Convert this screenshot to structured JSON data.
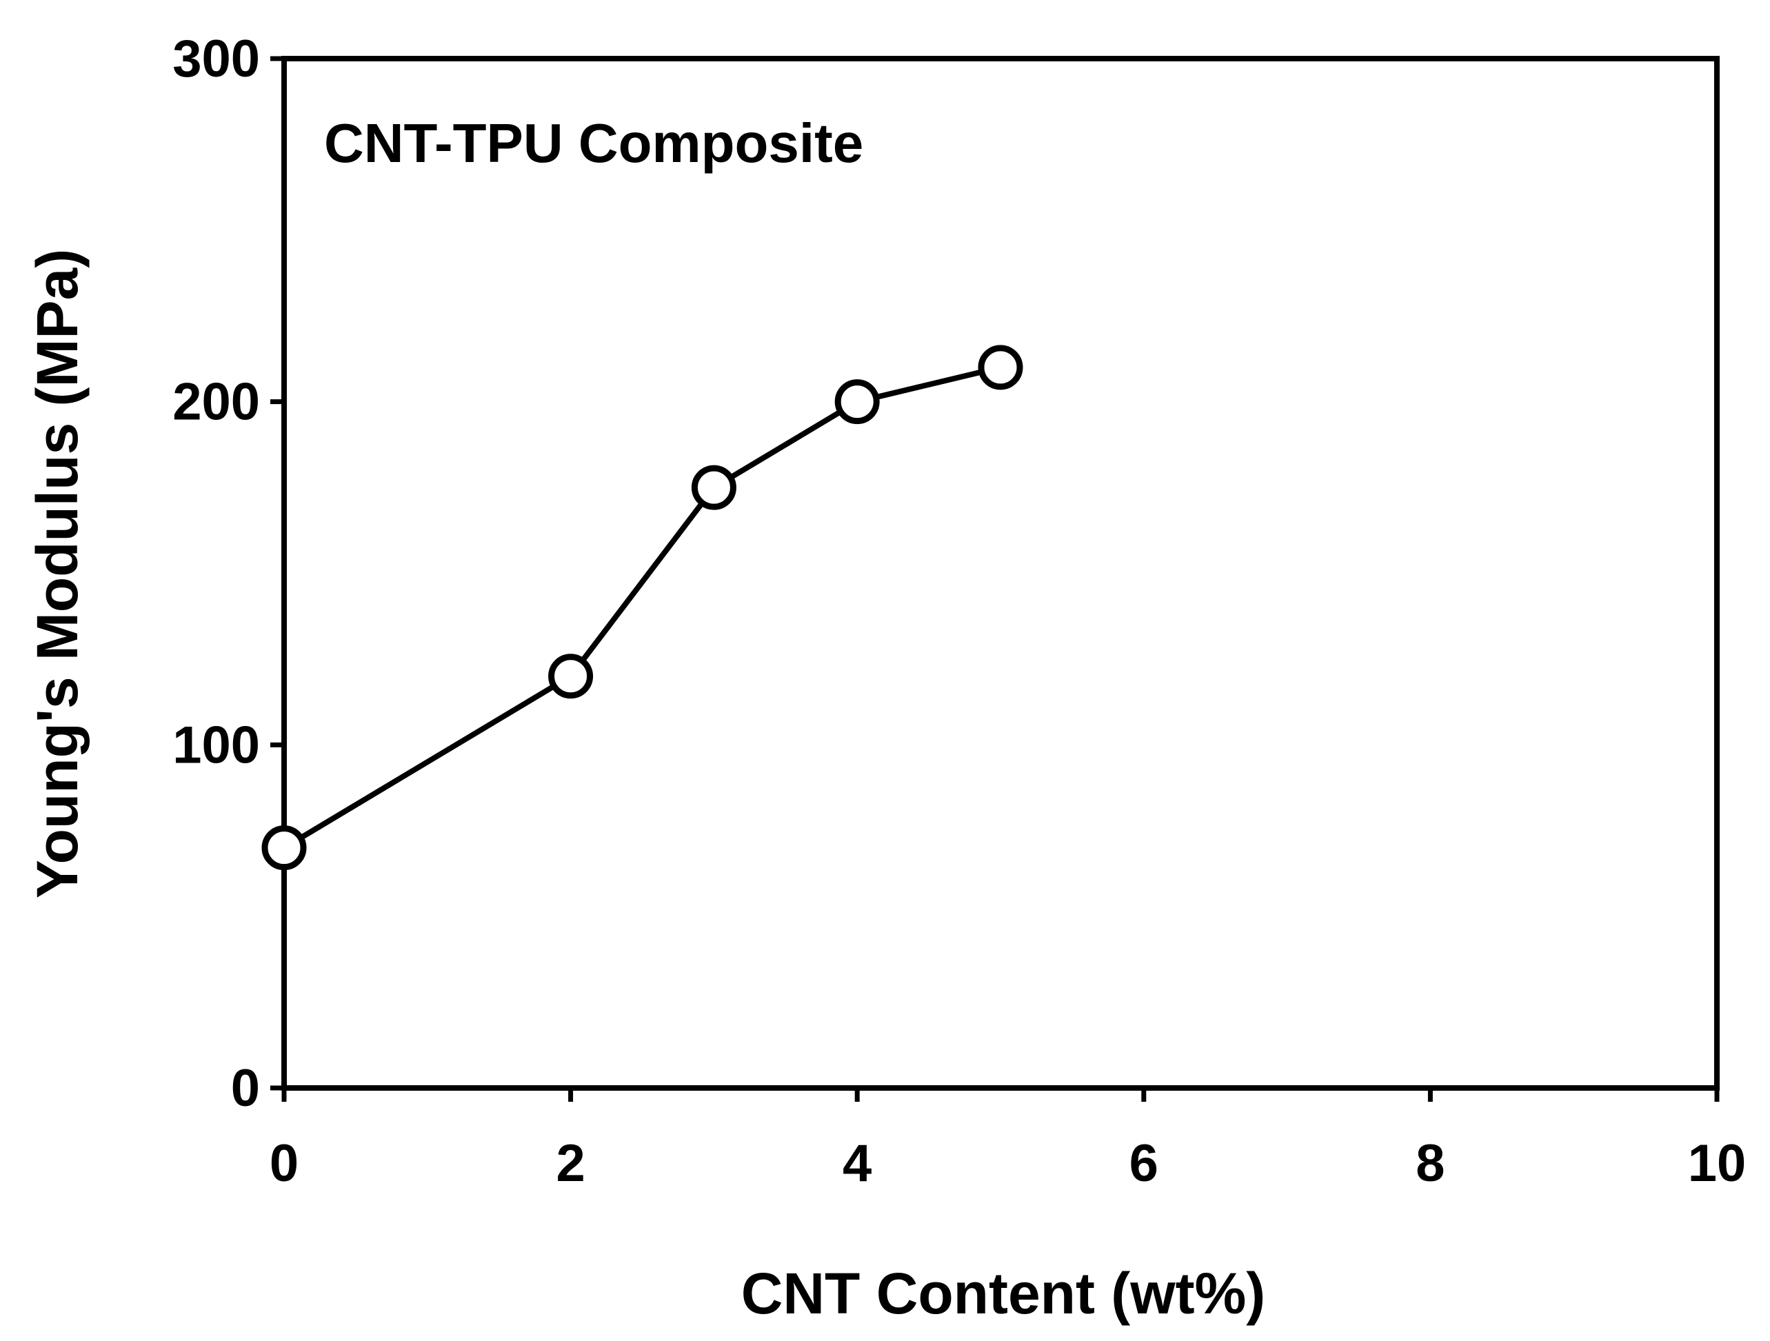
{
  "chart_data": {
    "type": "line",
    "title": "",
    "annotation": "CNT-TPU Composite",
    "xlabel": "CNT Content (wt%)",
    "ylabel": "Young's Modulus (MPa)",
    "xlim": [
      0,
      10
    ],
    "ylim": [
      0,
      300
    ],
    "x_ticks": [
      0,
      2,
      4,
      6,
      8,
      10
    ],
    "y_ticks": [
      0,
      100,
      200,
      300
    ],
    "x_tick_labels": [
      "0",
      "2",
      "4",
      "6",
      "8",
      "10"
    ],
    "y_tick_labels": [
      "0",
      "100",
      "200",
      "300"
    ],
    "grid": false,
    "legend": "none",
    "series": [
      {
        "marker": "open-circle",
        "color": "#000000",
        "x": [
          0,
          2,
          3,
          4,
          5
        ],
        "y": [
          70,
          120,
          175,
          200,
          210
        ]
      }
    ]
  }
}
